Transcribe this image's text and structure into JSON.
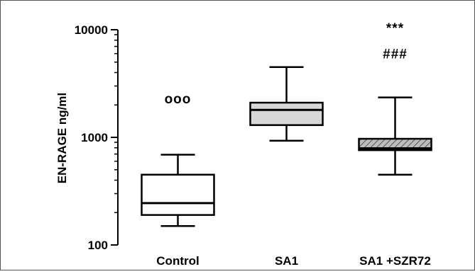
{
  "chart_data": {
    "type": "box",
    "ylabel": "EN-RAGE ng/ml",
    "yscale": "log",
    "ylim": [
      100,
      10000
    ],
    "yticks": [
      {
        "value": 100,
        "label": "100"
      },
      {
        "value": 1000,
        "label": "1000"
      },
      {
        "value": 10000,
        "label": "10000"
      }
    ],
    "categories": [
      "Control",
      "SA1",
      "SA1 +SZR72"
    ],
    "boxes": [
      {
        "category": "Control",
        "whisker_low": 150,
        "q1": 190,
        "median": 245,
        "q3": 450,
        "whisker_high": 690,
        "fill": "#ffffff",
        "pattern": "none"
      },
      {
        "category": "SA1",
        "whisker_low": 930,
        "q1": 1300,
        "median": 1800,
        "q3": 2100,
        "whisker_high": 4500,
        "fill": "#d8d8d8",
        "pattern": "none"
      },
      {
        "category": "SA1 +SZR72",
        "whisker_low": 450,
        "q1": 760,
        "median": 790,
        "q3": 970,
        "whisker_high": 2350,
        "fill": "#bbbbbb",
        "pattern": "hatch"
      }
    ],
    "annotations": [
      {
        "category": "Control",
        "text": "ooo",
        "value": 2300
      },
      {
        "category": "SA1 +SZR72",
        "text": "***",
        "value": 10500
      },
      {
        "category": "SA1 +SZR72",
        "text": "###",
        "value": 6000
      }
    ]
  }
}
